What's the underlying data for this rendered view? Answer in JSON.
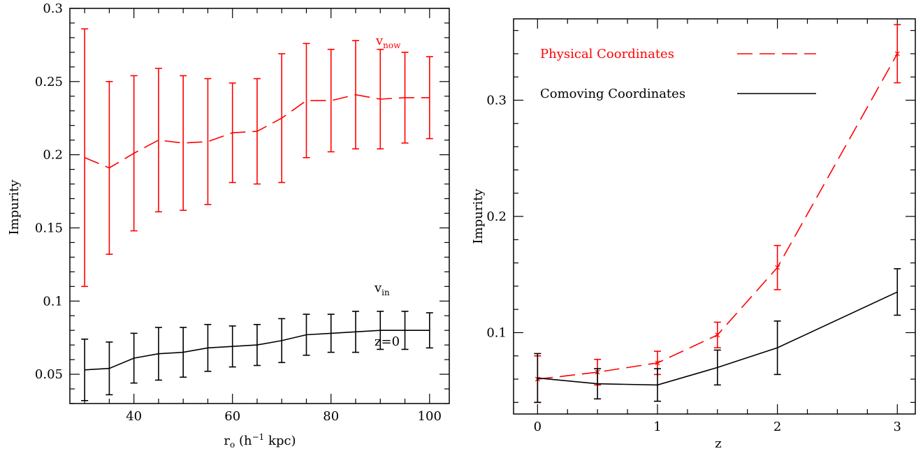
{
  "chart_data": [
    {
      "type": "line",
      "xlabel_main": "r",
      "xlabel_sub": "o",
      "xlabel_rest_open": " (h",
      "xlabel_sup": "−1",
      "xlabel_rest_close": " kpc)",
      "ylabel": "Impurity",
      "xlim": [
        27,
        104
      ],
      "ylim": [
        0.03,
        0.3
      ],
      "xticks": [
        40,
        60,
        80,
        100
      ],
      "yticks": [
        0.05,
        0.1,
        0.15,
        0.2,
        0.25,
        0.3
      ],
      "ytick_labels": [
        "0.05",
        "0.1",
        "0.15",
        "0.2",
        "0.25",
        "0.3"
      ],
      "x": [
        30,
        35,
        40,
        45,
        50,
        55,
        60,
        65,
        70,
        75,
        80,
        85,
        90,
        95,
        100
      ],
      "series": [
        {
          "label_main": "v",
          "label_sub": "now",
          "color": "#ff0000",
          "dash": "dashed",
          "y": [
            0.198,
            0.191,
            0.201,
            0.21,
            0.208,
            0.209,
            0.215,
            0.216,
            0.225,
            0.237,
            0.237,
            0.241,
            0.238,
            0.239,
            0.239
          ],
          "err": [
            0.088,
            0.059,
            0.053,
            0.049,
            0.046,
            0.043,
            0.034,
            0.036,
            0.044,
            0.039,
            0.035,
            0.037,
            0.034,
            0.031,
            0.028
          ]
        },
        {
          "label_main": "v",
          "label_sub": "in",
          "color": "#000000",
          "dash": "solid",
          "y": [
            0.053,
            0.054,
            0.061,
            0.064,
            0.065,
            0.068,
            0.069,
            0.07,
            0.073,
            0.077,
            0.078,
            0.079,
            0.08,
            0.08,
            0.08
          ],
          "err": [
            0.021,
            0.018,
            0.017,
            0.018,
            0.017,
            0.016,
            0.014,
            0.014,
            0.015,
            0.014,
            0.013,
            0.014,
            0.013,
            0.013,
            0.012
          ]
        }
      ],
      "annotation": "z=0"
    },
    {
      "type": "line",
      "xlabel": "z",
      "ylabel": "Impurity",
      "xlim": [
        -0.2,
        3.15
      ],
      "ylim": [
        0.03,
        0.37
      ],
      "xticks": [
        0,
        1,
        2,
        3
      ],
      "xtick_labels": [
        "0",
        "1",
        "2",
        "3"
      ],
      "yticks": [
        0.1,
        0.2,
        0.3
      ],
      "ytick_labels": [
        "0.1",
        "0.2",
        "0.3"
      ],
      "x": [
        0,
        0.5,
        1,
        1.5,
        2,
        3
      ],
      "series": [
        {
          "name": "Physical Coordinates",
          "color": "#ff0000",
          "dash": "dashed",
          "y": [
            0.06,
            0.066,
            0.074,
            0.098,
            0.156,
            0.34
          ],
          "err": [
            0.02,
            0.011,
            0.01,
            0.011,
            0.019,
            0.025
          ]
        },
        {
          "name": "Comoving Coordinates",
          "color": "#000000",
          "dash": "solid",
          "y": [
            0.061,
            0.056,
            0.055,
            0.07,
            0.087,
            0.135
          ],
          "err": [
            0.021,
            0.013,
            0.014,
            0.015,
            0.023,
            0.02
          ]
        }
      ],
      "legend_position": "top-left"
    }
  ]
}
